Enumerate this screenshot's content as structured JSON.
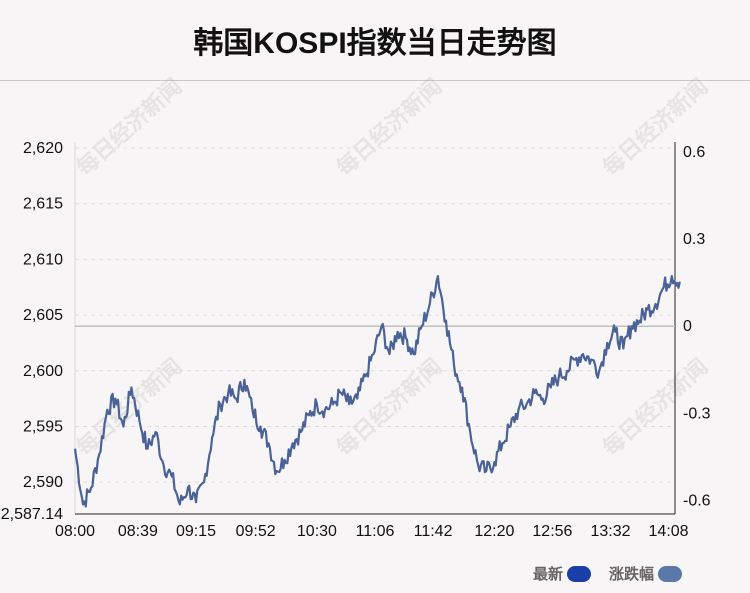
{
  "title": "韩国KOSPI指数当日走势图",
  "watermark": "每日经济新闻",
  "legend": [
    {
      "label": "最新",
      "color": "#1a3fa8"
    },
    {
      "label": "涨跌幅",
      "color": "#5a78a8"
    }
  ],
  "colors": {
    "line": "#4a6296",
    "baseline": "#c0c0c0",
    "grid": "#dcdcdc",
    "axis": "#222222"
  },
  "chart_data": {
    "type": "line",
    "title": "韩国KOSPI指数当日走势图",
    "xlabel": "",
    "ylabel": "",
    "x_ticks": [
      "08:00",
      "08:39",
      "09:15",
      "09:52",
      "10:30",
      "11:06",
      "11:42",
      "12:20",
      "12:56",
      "13:32",
      "14:08"
    ],
    "y_ticks_left": [
      "2,620",
      "2,615",
      "2,610",
      "2,605",
      "2,600",
      "2,595",
      "2,590",
      "2,587.14"
    ],
    "y_ticks_left_values": [
      2620,
      2615,
      2610,
      2605,
      2600,
      2595,
      2590,
      2587.14
    ],
    "y_ticks_right": [
      "0.6",
      "0.3",
      "0",
      "-0.3",
      "-0.6"
    ],
    "y_ticks_right_values": [
      0.6,
      0.3,
      0,
      -0.3,
      -0.6
    ],
    "ylim_left": [
      2587.14,
      2620
    ],
    "ylim_right": [
      -0.6,
      0.6
    ],
    "reference_value": 2604.0,
    "grid": true,
    "series": [
      {
        "x": [
          "08:00",
          "08:05",
          "08:10",
          "08:15",
          "08:20",
          "08:25",
          "08:30",
          "08:35",
          "08:40",
          "08:45",
          "08:50",
          "08:55",
          "09:00",
          "09:05",
          "09:10",
          "09:15",
          "09:20",
          "09:25",
          "09:30",
          "09:35",
          "09:40",
          "09:45",
          "09:50",
          "09:55",
          "10:00",
          "10:05",
          "10:10",
          "10:15",
          "10:20",
          "10:25",
          "10:30",
          "10:35",
          "10:40",
          "10:45",
          "10:50",
          "10:55",
          "11:00",
          "11:05",
          "11:10",
          "11:15",
          "11:20",
          "11:25",
          "11:30",
          "11:35",
          "11:40",
          "11:45",
          "11:50",
          "11:55",
          "12:00",
          "12:05",
          "12:10",
          "12:15",
          "12:20",
          "12:25",
          "12:30",
          "12:35",
          "12:40",
          "12:45",
          "12:50",
          "12:55",
          "13:00",
          "13:05",
          "13:10",
          "13:15",
          "13:20",
          "13:25",
          "13:30",
          "13:35",
          "13:40",
          "13:45",
          "13:50",
          "13:55",
          "14:00",
          "14:05",
          "14:10",
          "14:15"
        ],
        "values": [
          2593.0,
          2588.0,
          2589.5,
          2592.5,
          2596.5,
          2597.5,
          2595.0,
          2598.5,
          2595.5,
          2593.0,
          2594.5,
          2591.5,
          2590.5,
          2588.0,
          2589.5,
          2588.2,
          2590.0,
          2594.0,
          2597.0,
          2598.0,
          2597.5,
          2599.2,
          2596.5,
          2595.0,
          2593.5,
          2591.0,
          2592.0,
          2593.5,
          2594.5,
          2596.0,
          2597.0,
          2596.5,
          2597.0,
          2598.0,
          2597.0,
          2597.5,
          2599.5,
          2601.5,
          2604.0,
          2601.5,
          2603.5,
          2603.0,
          2601.5,
          2604.0,
          2606.0,
          2608.5,
          2604.5,
          2600.5,
          2598.5,
          2594.5,
          2591.5,
          2591.0,
          2591.8,
          2593.5,
          2595.0,
          2596.5,
          2597.0,
          2598.0,
          2597.5,
          2598.5,
          2599.5,
          2600.0,
          2601.0,
          2601.5,
          2601.0,
          2600.0,
          2602.5,
          2603.5,
          2602.0,
          2604.0,
          2604.5,
          2605.5,
          2606.0,
          2607.5,
          2608.5,
          2608.0
        ]
      }
    ],
    "legend_position": "bottom-right"
  }
}
